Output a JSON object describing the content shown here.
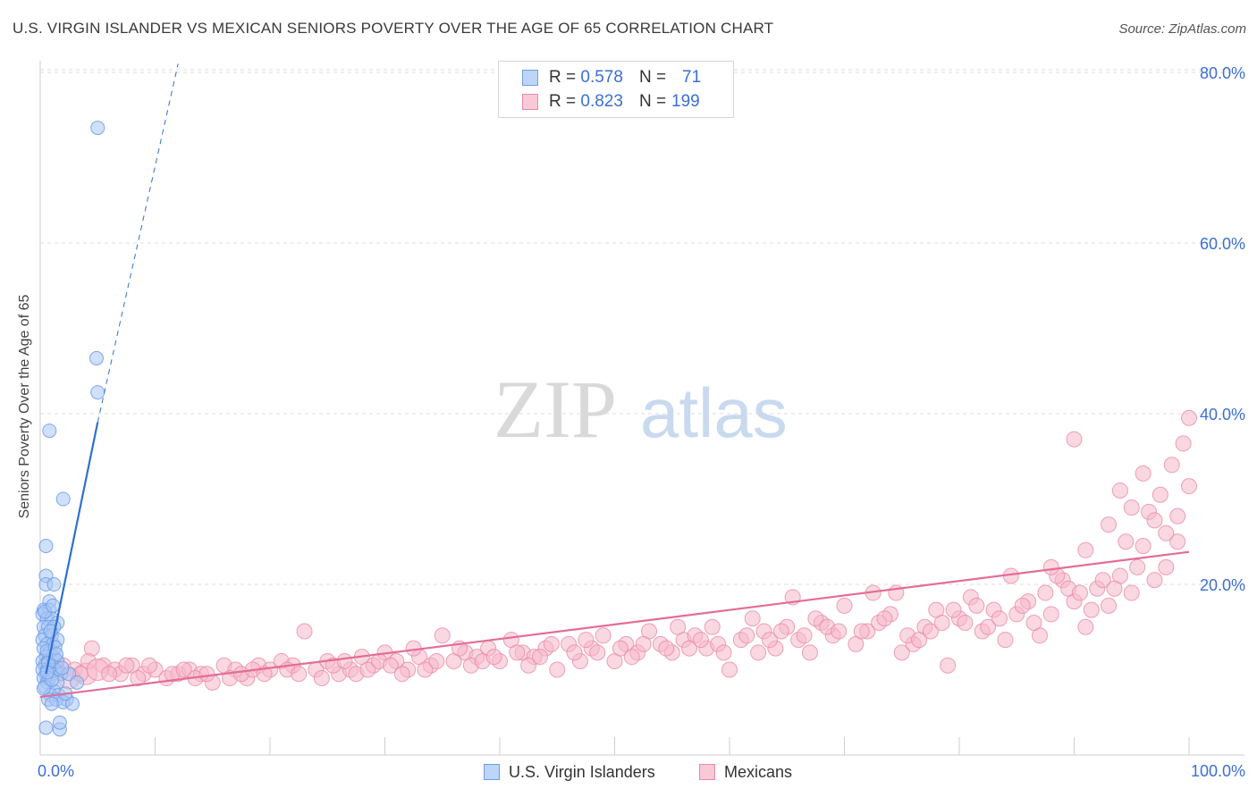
{
  "title": "U.S. VIRGIN ISLANDER VS MEXICAN SENIORS POVERTY OVER THE AGE OF 65 CORRELATION CHART",
  "source": "Source: ZipAtlas.com",
  "watermark": {
    "zip": "ZIP",
    "atlas": "atlas"
  },
  "legend": {
    "rows": [
      {
        "r_label": "R =",
        "r_value": "0.578",
        "n_label": "N =",
        "n_value": "71"
      },
      {
        "r_label": "R =",
        "r_value": "0.823",
        "n_label": "N =",
        "n_value": "199"
      }
    ]
  },
  "colors": {
    "blue_fill": "#a9c7f5",
    "blue_stroke": "#6f9ee8",
    "blue_line": "#2f6fd1",
    "pink_fill": "#f6b8cb",
    "pink_stroke": "#ea8aa8",
    "pink_line": "#e36d96",
    "tick_label": "#3b6fd6",
    "grid": "#dcdcdc"
  },
  "chart_data": {
    "type": "scatter",
    "title": "U.S. VIRGIN ISLANDER VS MEXICAN SENIORS POVERTY OVER THE AGE OF 65 CORRELATION CHART",
    "xlabel": "",
    "ylabel": "Seniors Poverty Over the Age of 65",
    "xlim": [
      0,
      100
    ],
    "ylim": [
      0,
      82
    ],
    "x_tick_labels": [
      "0.0%",
      "100.0%"
    ],
    "y_ticks": [
      20,
      40,
      60,
      80
    ],
    "y_tick_labels": [
      "20.0%",
      "40.0%",
      "60.0%",
      "80.0%"
    ],
    "grid": true,
    "legend_position": "top-center",
    "series": [
      {
        "name": "U.S. Virgin Islanders",
        "r": 0.578,
        "n": 71,
        "trend": {
          "x": [
            0.5,
            5.0
          ],
          "y": [
            9.5,
            39.0
          ],
          "extended_to": [
            12.0,
            81.0
          ]
        },
        "points": [
          [
            5.0,
            73.5
          ],
          [
            4.9,
            46.5
          ],
          [
            5.0,
            42.5
          ],
          [
            0.8,
            38.0
          ],
          [
            2.0,
            30.0
          ],
          [
            0.5,
            24.5
          ],
          [
            0.5,
            21.0
          ],
          [
            0.5,
            20.0
          ],
          [
            1.2,
            20.0
          ],
          [
            0.8,
            18.0
          ],
          [
            0.3,
            17.0
          ],
          [
            0.8,
            17.0
          ],
          [
            0.2,
            16.5
          ],
          [
            0.6,
            16.0
          ],
          [
            1.0,
            16.0
          ],
          [
            1.5,
            15.5
          ],
          [
            0.3,
            15.0
          ],
          [
            0.7,
            15.0
          ],
          [
            1.2,
            15.0
          ],
          [
            0.4,
            14.0
          ],
          [
            1.0,
            14.0
          ],
          [
            0.2,
            13.5
          ],
          [
            0.6,
            13.0
          ],
          [
            1.1,
            13.0
          ],
          [
            1.5,
            13.5
          ],
          [
            0.3,
            12.5
          ],
          [
            0.8,
            12.0
          ],
          [
            0.5,
            11.5
          ],
          [
            1.2,
            11.5
          ],
          [
            0.2,
            11.0
          ],
          [
            0.7,
            11.0
          ],
          [
            1.5,
            11.0
          ],
          [
            0.4,
            10.5
          ],
          [
            1.0,
            10.5
          ],
          [
            0.2,
            10.0
          ],
          [
            0.6,
            10.0
          ],
          [
            1.3,
            10.0
          ],
          [
            0.5,
            9.5
          ],
          [
            1.0,
            9.5
          ],
          [
            1.8,
            9.5
          ],
          [
            0.3,
            9.0
          ],
          [
            0.8,
            9.0
          ],
          [
            2.5,
            9.5
          ],
          [
            0.6,
            8.5
          ],
          [
            1.5,
            8.5
          ],
          [
            3.2,
            8.5
          ],
          [
            0.4,
            8.0
          ],
          [
            1.2,
            7.5
          ],
          [
            0.9,
            7.0
          ],
          [
            1.6,
            7.0
          ],
          [
            2.3,
            6.5
          ],
          [
            0.7,
            6.5
          ],
          [
            1.4,
            6.5
          ],
          [
            2.0,
            6.2
          ],
          [
            2.8,
            6.0
          ],
          [
            1.0,
            6.0
          ],
          [
            0.5,
            3.2
          ],
          [
            1.7,
            3.0
          ],
          [
            1.7,
            3.8
          ],
          [
            0.6,
            12.2
          ],
          [
            1.3,
            12.6
          ],
          [
            0.9,
            14.5
          ],
          [
            0.4,
            16.8
          ],
          [
            1.1,
            17.5
          ],
          [
            0.7,
            10.8
          ],
          [
            1.9,
            10.2
          ],
          [
            0.3,
            7.8
          ],
          [
            2.2,
            7.2
          ],
          [
            1.0,
            8.8
          ],
          [
            0.6,
            9.7
          ],
          [
            1.4,
            11.8
          ]
        ]
      },
      {
        "name": "Mexicans",
        "r": 0.823,
        "n": 199,
        "trend": {
          "x": [
            0.0,
            100.0
          ],
          "y": [
            6.8,
            23.8
          ]
        },
        "points": [
          [
            1.0,
            11.0
          ],
          [
            2.0,
            10.5
          ],
          [
            3.0,
            10.0
          ],
          [
            4.0,
            9.5
          ],
          [
            4.5,
            12.5
          ],
          [
            5.5,
            10.5
          ],
          [
            6.5,
            10.0
          ],
          [
            7.0,
            9.5
          ],
          [
            8.0,
            10.5
          ],
          [
            9.0,
            9.5
          ],
          [
            10.0,
            10.0
          ],
          [
            11.0,
            9.0
          ],
          [
            12.0,
            9.5
          ],
          [
            13.0,
            10.0
          ],
          [
            14.0,
            9.5
          ],
          [
            15.0,
            8.5
          ],
          [
            16.0,
            10.5
          ],
          [
            17.0,
            10.0
          ],
          [
            18.0,
            9.0
          ],
          [
            19.0,
            10.5
          ],
          [
            20.0,
            10.0
          ],
          [
            21.0,
            11.0
          ],
          [
            22.0,
            10.5
          ],
          [
            23.0,
            14.5
          ],
          [
            24.0,
            10.0
          ],
          [
            25.0,
            11.0
          ],
          [
            26.0,
            9.5
          ],
          [
            27.0,
            10.0
          ],
          [
            28.0,
            11.5
          ],
          [
            29.0,
            10.5
          ],
          [
            30.0,
            12.0
          ],
          [
            31.0,
            11.0
          ],
          [
            32.0,
            10.0
          ],
          [
            33.0,
            11.5
          ],
          [
            34.0,
            10.5
          ],
          [
            35.0,
            14.0
          ],
          [
            36.0,
            11.0
          ],
          [
            37.0,
            12.0
          ],
          [
            38.0,
            11.5
          ],
          [
            39.0,
            12.5
          ],
          [
            40.0,
            11.0
          ],
          [
            41.0,
            13.5
          ],
          [
            42.0,
            12.0
          ],
          [
            43.0,
            11.5
          ],
          [
            44.0,
            12.5
          ],
          [
            45.0,
            10.0
          ],
          [
            46.0,
            13.0
          ],
          [
            47.0,
            11.0
          ],
          [
            48.0,
            12.5
          ],
          [
            49.0,
            14.0
          ],
          [
            50.0,
            11.0
          ],
          [
            51.0,
            13.0
          ],
          [
            52.0,
            12.0
          ],
          [
            53.0,
            14.5
          ],
          [
            54.0,
            13.0
          ],
          [
            55.0,
            12.0
          ],
          [
            56.0,
            13.5
          ],
          [
            57.0,
            14.0
          ],
          [
            58.0,
            12.5
          ],
          [
            59.0,
            13.0
          ],
          [
            60.0,
            10.0
          ],
          [
            61.0,
            13.5
          ],
          [
            62.0,
            16.0
          ],
          [
            63.0,
            14.5
          ],
          [
            64.0,
            12.5
          ],
          [
            65.0,
            15.0
          ],
          [
            66.0,
            13.5
          ],
          [
            67.0,
            12.0
          ],
          [
            68.0,
            15.5
          ],
          [
            69.0,
            14.0
          ],
          [
            70.0,
            17.5
          ],
          [
            71.0,
            13.0
          ],
          [
            72.0,
            14.5
          ],
          [
            73.0,
            15.5
          ],
          [
            74.0,
            16.5
          ],
          [
            75.0,
            12.0
          ],
          [
            76.0,
            13.0
          ],
          [
            77.0,
            15.0
          ],
          [
            78.0,
            17.0
          ],
          [
            79.0,
            10.5
          ],
          [
            80.0,
            16.0
          ],
          [
            81.0,
            18.5
          ],
          [
            82.0,
            14.5
          ],
          [
            83.0,
            17.0
          ],
          [
            84.0,
            13.5
          ],
          [
            85.0,
            16.5
          ],
          [
            86.0,
            18.0
          ],
          [
            87.0,
            14.0
          ],
          [
            88.0,
            16.5
          ],
          [
            89.0,
            20.5
          ],
          [
            90.0,
            18.0
          ],
          [
            91.0,
            15.0
          ],
          [
            92.0,
            19.5
          ],
          [
            93.0,
            17.5
          ],
          [
            94.0,
            21.0
          ],
          [
            95.0,
            19.0
          ],
          [
            96.0,
            24.5
          ],
          [
            97.0,
            20.5
          ],
          [
            98.0,
            22.0
          ],
          [
            99.0,
            25.0
          ],
          [
            100.0,
            39.5
          ],
          [
            1.5,
            10.0
          ],
          [
            2.5,
            9.0
          ],
          [
            3.5,
            9.5
          ],
          [
            4.2,
            11.0
          ],
          [
            5.0,
            10.0
          ],
          [
            6.0,
            9.5
          ],
          [
            7.5,
            10.5
          ],
          [
            8.5,
            9.0
          ],
          [
            9.5,
            10.5
          ],
          [
            11.5,
            9.5
          ],
          [
            12.5,
            10.0
          ],
          [
            13.5,
            9.0
          ],
          [
            14.5,
            9.5
          ],
          [
            16.5,
            9.0
          ],
          [
            17.5,
            9.5
          ],
          [
            18.5,
            10.0
          ],
          [
            19.5,
            9.5
          ],
          [
            21.5,
            10.0
          ],
          [
            22.5,
            9.5
          ],
          [
            24.5,
            9.0
          ],
          [
            25.5,
            10.5
          ],
          [
            26.5,
            11.0
          ],
          [
            27.5,
            9.5
          ],
          [
            28.5,
            10.0
          ],
          [
            29.5,
            11.0
          ],
          [
            30.5,
            10.5
          ],
          [
            31.5,
            9.5
          ],
          [
            32.5,
            12.5
          ],
          [
            33.5,
            10.0
          ],
          [
            34.5,
            11.0
          ],
          [
            36.5,
            12.5
          ],
          [
            37.5,
            10.5
          ],
          [
            38.5,
            11.0
          ],
          [
            39.5,
            11.5
          ],
          [
            41.5,
            12.0
          ],
          [
            42.5,
            10.5
          ],
          [
            43.5,
            11.5
          ],
          [
            44.5,
            13.0
          ],
          [
            46.5,
            12.0
          ],
          [
            47.5,
            13.5
          ],
          [
            48.5,
            12.0
          ],
          [
            50.5,
            12.5
          ],
          [
            51.5,
            11.5
          ],
          [
            52.5,
            13.0
          ],
          [
            54.5,
            12.5
          ],
          [
            55.5,
            15.0
          ],
          [
            56.5,
            12.5
          ],
          [
            57.5,
            13.5
          ],
          [
            58.5,
            15.0
          ],
          [
            59.5,
            12.0
          ],
          [
            61.5,
            14.0
          ],
          [
            62.5,
            12.0
          ],
          [
            63.5,
            13.5
          ],
          [
            64.5,
            14.5
          ],
          [
            65.5,
            18.5
          ],
          [
            66.5,
            14.0
          ],
          [
            67.5,
            16.0
          ],
          [
            68.5,
            15.0
          ],
          [
            69.5,
            14.5
          ],
          [
            71.5,
            14.5
          ],
          [
            72.5,
            19.0
          ],
          [
            73.5,
            16.0
          ],
          [
            74.5,
            19.0
          ],
          [
            75.5,
            14.0
          ],
          [
            76.5,
            13.5
          ],
          [
            77.5,
            14.5
          ],
          [
            78.5,
            15.5
          ],
          [
            79.5,
            17.0
          ],
          [
            80.5,
            15.5
          ],
          [
            81.5,
            17.5
          ],
          [
            82.5,
            15.0
          ],
          [
            83.5,
            16.0
          ],
          [
            84.5,
            21.0
          ],
          [
            85.5,
            17.5
          ],
          [
            86.5,
            15.5
          ],
          [
            87.5,
            19.0
          ],
          [
            88.5,
            21.0
          ],
          [
            89.5,
            19.5
          ],
          [
            90.5,
            19.0
          ],
          [
            91.5,
            17.0
          ],
          [
            92.5,
            20.5
          ],
          [
            93.5,
            19.5
          ],
          [
            94.5,
            25.0
          ],
          [
            95.5,
            22.0
          ],
          [
            96.5,
            28.5
          ],
          [
            97.5,
            30.5
          ],
          [
            98.5,
            34.0
          ],
          [
            99.5,
            36.5
          ],
          [
            88.0,
            22.0
          ],
          [
            90.0,
            37.0
          ],
          [
            91.0,
            24.0
          ],
          [
            93.0,
            27.0
          ],
          [
            94.0,
            31.0
          ],
          [
            95.0,
            29.0
          ],
          [
            96.0,
            33.0
          ],
          [
            97.0,
            27.5
          ],
          [
            98.0,
            26.0
          ],
          [
            99.0,
            28.0
          ],
          [
            100.0,
            31.5
          ]
        ]
      }
    ]
  },
  "bottom_legend": [
    {
      "label": "U.S. Virgin Islanders"
    },
    {
      "label": "Mexicans"
    }
  ]
}
